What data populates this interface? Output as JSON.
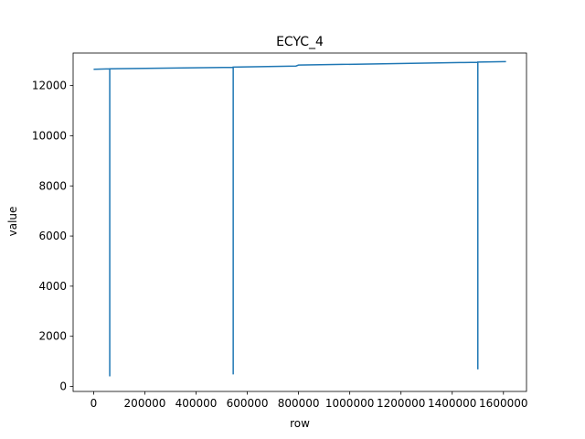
{
  "chart_data": {
    "type": "line",
    "title": "ECYC_4",
    "xlabel": "row",
    "ylabel": "value",
    "xlim": [
      -80000,
      1690000
    ],
    "ylim": [
      -200,
      13300
    ],
    "x_ticks": [
      0,
      200000,
      400000,
      600000,
      800000,
      1000000,
      1200000,
      1400000,
      1600000
    ],
    "x_tick_labels": [
      "0",
      "200000",
      "400000",
      "600000",
      "800000",
      "1000000",
      "1200000",
      "1400000",
      "1600000"
    ],
    "y_ticks": [
      0,
      2000,
      4000,
      6000,
      8000,
      10000,
      12000
    ],
    "y_tick_labels": [
      "0",
      "2000",
      "4000",
      "6000",
      "8000",
      "10000",
      "12000"
    ],
    "grid": false,
    "series": [
      {
        "color": "#1f77b4",
        "x": [
          0,
          63000,
          63000,
          63000,
          545000,
          545000,
          545000,
          790000,
          800000,
          1430000,
          1500000,
          1500000,
          1500000,
          1610000
        ],
        "y": [
          12650,
          12670,
          400,
          12670,
          12730,
          480,
          12740,
          12780,
          12820,
          12920,
          12930,
          680,
          12940,
          12960
        ]
      }
    ]
  }
}
